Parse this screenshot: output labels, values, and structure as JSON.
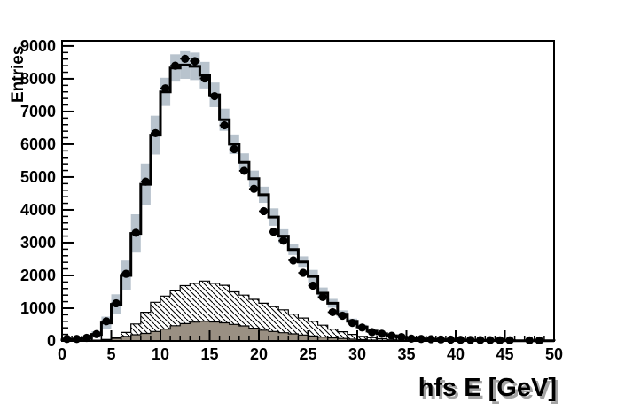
{
  "figure": {
    "background": "#ffffff"
  },
  "chart_data": {
    "type": "bar",
    "style": "root-histogram-steps",
    "title": "",
    "xlabel": "hfs E [GeV]",
    "ylabel": "Entries",
    "xlim": [
      0,
      50
    ],
    "ylim": [
      0,
      9160
    ],
    "bin_width": 1,
    "grid": false,
    "legend": "none",
    "x_major_ticks": [
      0,
      5,
      10,
      15,
      20,
      25,
      30,
      35,
      40,
      45,
      50
    ],
    "x_minor_step": 1,
    "y_major_ticks": [
      0,
      1000,
      2000,
      3000,
      4000,
      5000,
      6000,
      7000,
      8000,
      9000
    ],
    "y_minor_step": 200,
    "colors": {
      "band": "#b8c3cd",
      "brown_fill": "#9a9083",
      "line": "#000000",
      "marker": "#000000",
      "hatch_line": "#000000"
    },
    "series": [
      {
        "name": "data-points",
        "draw": "scatter",
        "marker": "filled-circle",
        "x_center_offset": 0.5,
        "values": [
          60,
          60,
          95,
          210,
          600,
          1150,
          2050,
          3300,
          4860,
          6340,
          7710,
          8400,
          8610,
          8540,
          8010,
          7470,
          6580,
          5850,
          5190,
          4640,
          3960,
          3330,
          3060,
          2460,
          2080,
          1690,
          1340,
          880,
          770,
          550,
          410,
          270,
          220,
          160,
          120,
          70,
          60,
          55,
          45,
          40,
          35,
          30,
          28,
          25,
          22,
          20,
          null,
          18,
          15,
          null
        ]
      },
      {
        "name": "mc-total",
        "draw": "step-line",
        "values": [
          30,
          45,
          85,
          200,
          550,
          1120,
          2000,
          3280,
          4780,
          6280,
          7600,
          8330,
          8420,
          8380,
          8110,
          7510,
          6750,
          6000,
          5450,
          4950,
          4460,
          3780,
          3200,
          2790,
          2410,
          1970,
          1460,
          1150,
          820,
          600,
          430,
          300,
          220,
          160,
          115,
          80,
          60,
          48,
          38,
          30,
          25,
          20,
          17,
          14,
          12,
          10,
          9,
          8,
          7,
          6
        ]
      },
      {
        "name": "mc-uncertainty-band",
        "draw": "band",
        "around": "mc-total",
        "frac": 0.05,
        "slope_frac": 0.42,
        "min_half_width": 15
      },
      {
        "name": "background-hatched",
        "draw": "step-filled",
        "fill": "diagonal-hatch",
        "values": [
          5,
          8,
          15,
          25,
          45,
          110,
          260,
          520,
          875,
          1180,
          1370,
          1530,
          1690,
          1760,
          1830,
          1760,
          1700,
          1500,
          1400,
          1270,
          1150,
          1050,
          950,
          820,
          700,
          600,
          480,
          360,
          280,
          200,
          140,
          100,
          68,
          45,
          28,
          16,
          10,
          6,
          4,
          3,
          2,
          2,
          1,
          1,
          1,
          0,
          0,
          0,
          0,
          0
        ]
      },
      {
        "name": "background-brown",
        "draw": "step-filled",
        "fill": "solid-brown",
        "values": [
          2,
          4,
          8,
          15,
          40,
          80,
          140,
          190,
          230,
          290,
          360,
          465,
          530,
          575,
          600,
          580,
          555,
          505,
          460,
          390,
          330,
          290,
          250,
          215,
          180,
          150,
          120,
          95,
          75,
          55,
          40,
          28,
          18,
          12,
          8,
          5,
          3,
          2,
          1,
          1,
          0,
          0,
          0,
          0,
          0,
          0,
          0,
          0,
          0,
          0
        ]
      }
    ]
  }
}
